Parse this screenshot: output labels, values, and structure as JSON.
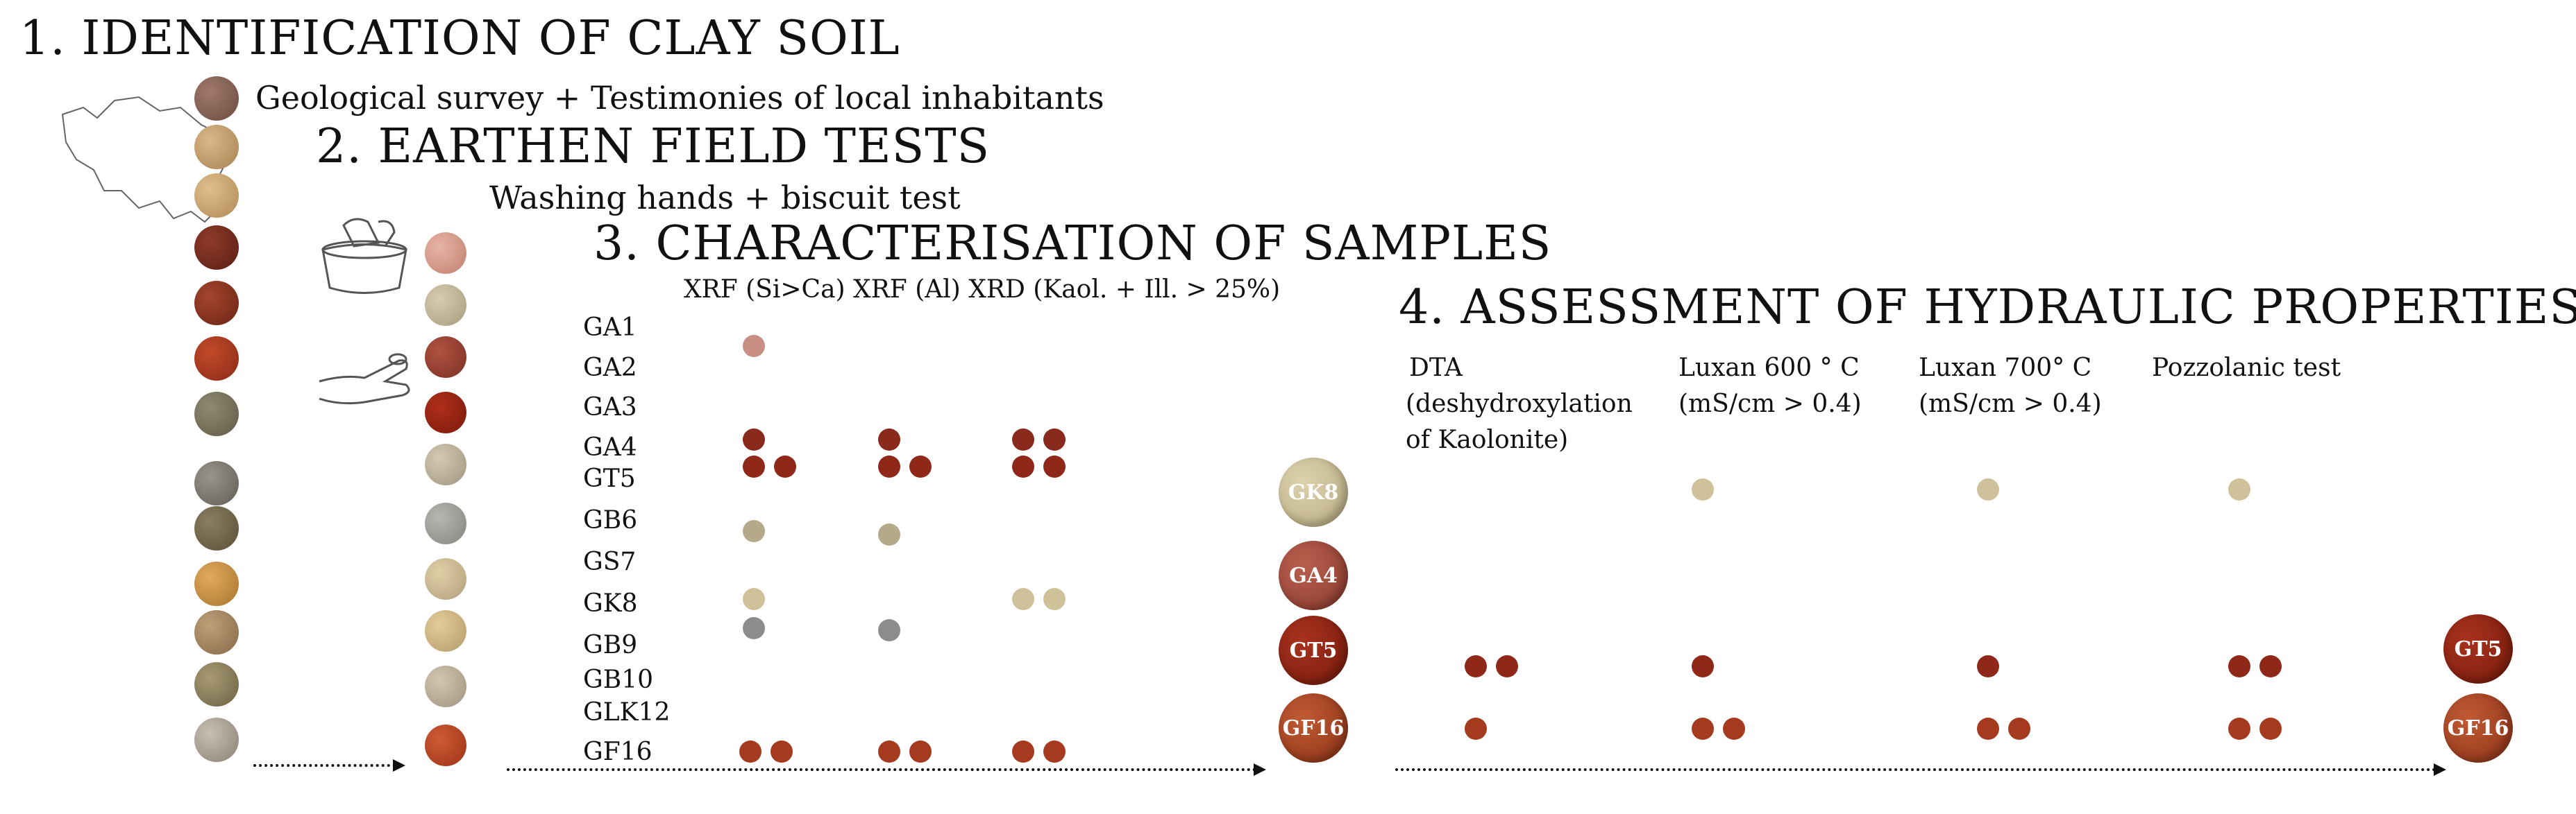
{
  "steps": {
    "s1": {
      "title": "1. IDENTIFICATION OF CLAY SOIL",
      "subtitle": "Geological survey + Testimonies of local inhabitants"
    },
    "s2": {
      "title": "2. EARTHEN FIELD TESTS",
      "subtitle": "Washing hands + biscuit test"
    },
    "s3": {
      "title": "3. CHARACTERISATION OF SAMPLES",
      "columns": "XRF (Si>Ca) XRF (Al) XRD (Kaol. + Ill. > 25%)",
      "rows": [
        "GA1",
        "GA2",
        "GA3",
        "GA4",
        "GT5",
        "GB6",
        "GS7",
        "GK8",
        "GB9",
        "GB10",
        "GLK12",
        "GF16"
      ]
    },
    "s4": {
      "title": "4. ASSESSMENT OF HYDRAULIC PROPERTIES",
      "col1_l1": "DTA",
      "col1_l2": "(deshydroxylation",
      "col1_l3": "of Kaolonite)",
      "col2_l1": "Luxan 600 ° C",
      "col2_l2": "(mS/cm > 0.4)",
      "col3_l1": "Luxan 700° C",
      "col3_l2": "(mS/cm > 0.4)",
      "col4_l1": "Pozzolanic test"
    }
  },
  "selected_after_step3": [
    "GK8",
    "GA4",
    "GT5",
    "GF16"
  ],
  "selected_after_step4": [
    "GT5",
    "GF16"
  ],
  "colors": {
    "GA1": "#c98f84",
    "GA4": "#8a2a1c",
    "GT5": "#8f2819",
    "GB6": "#b4aa8a",
    "GK8": "#cfc29a",
    "GB9": "#8c8c8c",
    "GF16": "#a53a1e"
  }
}
